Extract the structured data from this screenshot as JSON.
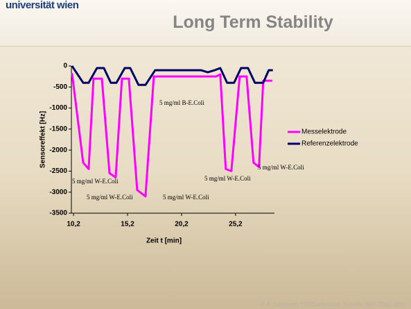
{
  "logo": "universität wien",
  "footer": "P. A. Lieberzeit, TNTConference, Tenerife, Nov. 22nd, 2011",
  "chart_data": {
    "type": "line",
    "title": "Long Term Stability",
    "x_label": "Zeit t [min]",
    "y_label": "Sensoreffekt [Hz]",
    "xlim": [
      10.0,
      28.8
    ],
    "ylim": [
      -3500,
      0
    ],
    "xticks": [
      {
        "value": 10.2,
        "label": "10,2"
      },
      {
        "value": 15.2,
        "label": "15,2"
      },
      {
        "value": 20.2,
        "label": "20,2"
      },
      {
        "value": 25.2,
        "label": "25,2"
      }
    ],
    "yticks": [
      0,
      -500,
      -1000,
      -1500,
      -2000,
      -2500,
      -3000,
      -3500
    ],
    "legend": "right",
    "series": [
      {
        "name": "Messelektrode",
        "color": "#ff00ff",
        "x": [
          10.06,
          11.09,
          11.6,
          12.05,
          12.82,
          13.53,
          14.1,
          14.68,
          15.32,
          16.09,
          16.86,
          17.63,
          23.4,
          23.78,
          24.29,
          24.81,
          25.58,
          26.22,
          26.86,
          27.37,
          27.76,
          28.59
        ],
        "values": [
          -170,
          -2300,
          -2450,
          -300,
          -300,
          -2550,
          -2650,
          -300,
          -300,
          -2950,
          -3100,
          -250,
          -250,
          -200,
          -2450,
          -2500,
          -250,
          -250,
          -2300,
          -2400,
          -350,
          -350
        ]
      },
      {
        "name": "Referenzelektrode",
        "color": "#000066",
        "x": [
          10.06,
          11.09,
          11.6,
          12.37,
          13.01,
          13.65,
          14.17,
          14.94,
          15.45,
          16.22,
          16.86,
          17.76,
          21.99,
          22.63,
          23.27,
          23.78,
          24.42,
          25.06,
          25.71,
          26.35,
          26.99,
          27.76,
          28.27,
          28.65
        ],
        "values": [
          0,
          -400,
          -400,
          -50,
          -50,
          -400,
          -400,
          -50,
          -50,
          -450,
          -450,
          -100,
          -100,
          -150,
          -100,
          -50,
          -400,
          -400,
          -50,
          -50,
          -400,
          -400,
          -100,
          -100
        ]
      }
    ],
    "annotations": [
      "5 mg/ml B-E.Coli",
      "5 mg/ml W-E.Coli",
      "5 mg/ml W-E.Coli",
      "5 mg/ml W-E.Coli",
      "5 mg/ml W-E.Coli",
      "5 mg/ml W-E.Coli"
    ]
  }
}
